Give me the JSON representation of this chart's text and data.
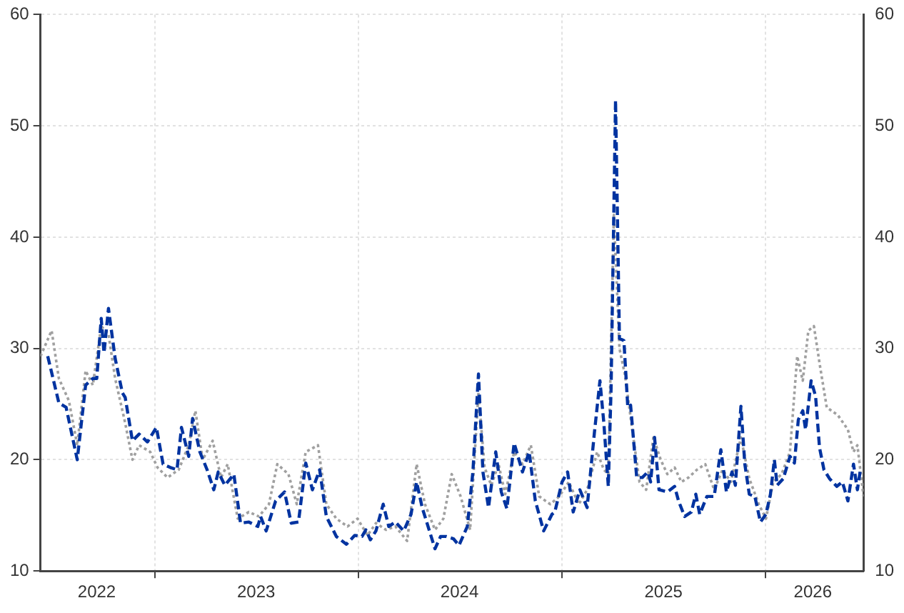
{
  "chart_data": {
    "type": "line",
    "grid": true,
    "legend": false,
    "marker": "none",
    "xlim": [
      "2022-06-10",
      "2026-06-26"
    ],
    "xticks": [
      {
        "value": "2023-01-01",
        "label": null
      },
      {
        "value": "2024-01-01",
        "label": null
      },
      {
        "value": "2025-01-01",
        "label": null
      },
      {
        "value": "2026-01-01",
        "label": null
      },
      {
        "value": "2022-09-19",
        "label": "2022"
      },
      {
        "value": "2023-07-02",
        "label": "2023"
      },
      {
        "value": "2024-07-01",
        "label": "2024"
      },
      {
        "value": "2025-07-02",
        "label": "2025"
      },
      {
        "value": "2026-03-27",
        "label": "2026"
      }
    ],
    "ylim": [
      10,
      60
    ],
    "yticks": [
      10,
      20,
      30,
      40,
      50,
      60
    ],
    "y2lim": [
      10,
      60
    ],
    "y2ticks": [
      10,
      20,
      30,
      40,
      50,
      60
    ],
    "series": [
      {
        "color": "#0033a0",
        "line_style": "dashed",
        "x": [
          "2022-06-23",
          "2022-07-13",
          "2022-07-26",
          "2022-08-15",
          "2022-08-30",
          "2022-09-12",
          "2022-09-19",
          "2022-09-27",
          "2022-10-02",
          "2022-10-10",
          "2022-10-22",
          "2022-11-04",
          "2022-11-09",
          "2022-11-22",
          "2022-12-04",
          "2022-12-19",
          "2023-01-04",
          "2023-01-16",
          "2023-01-29",
          "2023-02-10",
          "2023-02-18",
          "2023-03-03",
          "2023-03-10",
          "2023-03-23",
          "2023-04-05",
          "2023-04-17",
          "2023-04-25",
          "2023-05-07",
          "2023-05-23",
          "2023-06-04",
          "2023-06-19",
          "2023-07-05",
          "2023-07-10",
          "2023-07-20",
          "2023-08-06",
          "2023-08-22",
          "2023-09-03",
          "2023-09-16",
          "2023-09-29",
          "2023-10-11",
          "2023-10-24",
          "2023-11-05",
          "2023-11-23",
          "2023-12-11",
          "2023-12-26",
          "2024-01-08",
          "2024-01-15",
          "2024-01-23",
          "2024-02-02",
          "2024-02-15",
          "2024-02-25",
          "2024-03-08",
          "2024-03-23",
          "2024-04-05",
          "2024-04-15",
          "2024-04-25",
          "2024-05-08",
          "2024-05-18",
          "2024-05-28",
          "2024-06-07",
          "2024-06-20",
          "2024-06-30",
          "2024-07-15",
          "2024-07-25",
          "2024-08-04",
          "2024-08-12",
          "2024-08-22",
          "2024-09-04",
          "2024-09-14",
          "2024-09-24",
          "2024-10-07",
          "2024-10-22",
          "2024-11-03",
          "2024-11-14",
          "2024-11-29",
          "2024-12-14",
          "2024-12-19",
          "2025-01-01",
          "2025-01-11",
          "2025-01-21",
          "2025-02-02",
          "2025-02-15",
          "2025-02-28",
          "2025-03-10",
          "2025-03-17",
          "2025-03-25",
          "2025-03-30",
          "2025-04-07",
          "2025-04-14",
          "2025-04-22",
          "2025-04-29",
          "2025-05-04",
          "2025-05-15",
          "2025-05-25",
          "2025-06-04",
          "2025-06-09",
          "2025-06-16",
          "2025-06-24",
          "2025-07-09",
          "2025-07-22",
          "2025-07-29",
          "2025-08-09",
          "2025-08-21",
          "2025-08-29",
          "2025-09-05",
          "2025-09-18",
          "2025-10-01",
          "2025-10-13",
          "2025-10-23",
          "2025-11-02",
          "2025-11-08",
          "2025-11-18",
          "2025-11-25",
          "2025-12-03",
          "2025-12-13",
          "2025-12-23",
          "2026-01-02",
          "2026-01-10",
          "2026-01-17",
          "2026-01-22",
          "2026-02-02",
          "2026-02-14",
          "2026-02-22",
          "2026-03-01",
          "2026-03-09",
          "2026-03-14",
          "2026-03-24",
          "2026-04-01",
          "2026-04-08",
          "2026-04-16",
          "2026-04-26",
          "2026-05-09",
          "2026-05-19",
          "2026-05-29",
          "2026-06-08",
          "2026-06-15",
          "2026-06-21"
        ],
        "values": [
          29.3,
          25.1,
          24.7,
          20.0,
          26.7,
          27.3,
          27.3,
          32.7,
          29.6,
          33.6,
          29.1,
          26.0,
          25.6,
          21.7,
          22.3,
          21.6,
          22.9,
          19.6,
          19.3,
          19.1,
          22.9,
          20.3,
          23.7,
          20.7,
          19.1,
          17.3,
          18.9,
          17.7,
          18.7,
          14.3,
          14.4,
          14.0,
          14.9,
          13.6,
          16.3,
          17.1,
          14.3,
          14.4,
          19.7,
          17.3,
          19.1,
          14.9,
          13.1,
          12.4,
          13.2,
          13.1,
          13.7,
          12.8,
          13.6,
          16.0,
          14.0,
          14.4,
          13.6,
          15.1,
          18.0,
          15.7,
          13.6,
          12.0,
          13.1,
          13.1,
          12.9,
          12.3,
          14.0,
          18.9,
          27.7,
          18.9,
          15.7,
          20.7,
          17.1,
          15.6,
          21.5,
          18.9,
          20.7,
          16.3,
          13.6,
          15.1,
          15.3,
          18.0,
          18.9,
          15.3,
          17.3,
          15.7,
          22.4,
          27.1,
          23.3,
          17.6,
          26.4,
          52.3,
          30.9,
          30.7,
          24.7,
          24.9,
          18.4,
          18.4,
          18.9,
          18.0,
          22.0,
          17.3,
          17.1,
          17.6,
          16.3,
          14.9,
          15.3,
          16.9,
          15.1,
          16.7,
          16.7,
          20.9,
          17.1,
          18.9,
          17.7,
          24.8,
          19.6,
          16.9,
          16.7,
          14.4,
          15.1,
          16.9,
          20.0,
          17.7,
          18.3,
          20.3,
          19.7,
          23.6,
          24.4,
          22.7,
          27.1,
          25.7,
          21.1,
          19.1,
          18.3,
          17.6,
          18.0,
          16.3,
          19.6,
          17.3,
          19.3
        ]
      },
      {
        "color": "#a0a0a0",
        "line_style": "dotted",
        "x": [
          "2022-06-10",
          "2022-06-30",
          "2022-07-13",
          "2022-07-31",
          "2022-08-15",
          "2022-08-30",
          "2022-09-12",
          "2022-09-27",
          "2022-10-10",
          "2022-10-22",
          "2022-11-09",
          "2022-11-22",
          "2022-12-04",
          "2022-12-24",
          "2023-01-06",
          "2023-01-24",
          "2023-02-13",
          "2023-03-03",
          "2023-03-15",
          "2023-03-28",
          "2023-04-15",
          "2023-04-30",
          "2023-05-12",
          "2023-05-30",
          "2023-06-19",
          "2023-07-07",
          "2023-07-25",
          "2023-08-09",
          "2023-08-29",
          "2023-09-13",
          "2023-09-29",
          "2023-10-21",
          "2023-11-05",
          "2023-11-23",
          "2023-12-13",
          "2023-12-31",
          "2024-01-18",
          "2024-02-02",
          "2024-02-20",
          "2024-03-08",
          "2024-03-29",
          "2024-04-15",
          "2024-04-30",
          "2024-05-18",
          "2024-06-02",
          "2024-06-17",
          "2024-07-03",
          "2024-07-20",
          "2024-08-04",
          "2024-08-15",
          "2024-08-27",
          "2024-09-09",
          "2024-09-21",
          "2024-10-07",
          "2024-10-22",
          "2024-11-06",
          "2024-11-21",
          "2024-12-11",
          "2024-12-27",
          "2025-01-13",
          "2025-01-31",
          "2025-02-15",
          "2025-03-05",
          "2025-03-17",
          "2025-03-25",
          "2025-04-04",
          "2025-04-14",
          "2025-04-24",
          "2025-05-07",
          "2025-05-20",
          "2025-06-01",
          "2025-06-14",
          "2025-06-27",
          "2025-07-09",
          "2025-07-22",
          "2025-08-03",
          "2025-08-16",
          "2025-08-31",
          "2025-09-15",
          "2025-10-01",
          "2025-10-16",
          "2025-10-31",
          "2025-11-18",
          "2025-12-03",
          "2025-12-20",
          "2026-01-02",
          "2026-01-15",
          "2026-01-30",
          "2026-02-14",
          "2026-02-27",
          "2026-03-09",
          "2026-03-19",
          "2026-03-29",
          "2026-04-08",
          "2026-04-21",
          "2026-05-11",
          "2026-05-29",
          "2026-06-08",
          "2026-06-15",
          "2026-06-26"
        ],
        "values": [
          29.3,
          31.6,
          27.3,
          25.3,
          21.3,
          28.0,
          26.7,
          32.0,
          31.3,
          27.3,
          23.3,
          20.0,
          21.3,
          20.7,
          19.3,
          18.4,
          19.1,
          21.3,
          24.4,
          20.0,
          21.7,
          18.4,
          19.6,
          14.7,
          15.3,
          14.9,
          16.0,
          19.6,
          18.7,
          16.0,
          20.7,
          21.3,
          16.0,
          14.7,
          14.0,
          14.7,
          13.2,
          14.3,
          13.7,
          14.0,
          12.7,
          19.6,
          16.0,
          13.7,
          14.7,
          18.7,
          16.7,
          13.7,
          26.0,
          19.3,
          17.7,
          19.6,
          16.9,
          20.7,
          19.6,
          21.3,
          16.7,
          16.0,
          16.7,
          18.0,
          16.0,
          17.3,
          20.7,
          19.1,
          18.7,
          42.0,
          30.0,
          27.6,
          22.7,
          18.0,
          17.3,
          22.0,
          20.0,
          18.7,
          19.3,
          18.0,
          18.4,
          19.1,
          19.6,
          17.3,
          19.1,
          18.0,
          22.0,
          18.3,
          16.0,
          14.7,
          18.0,
          18.7,
          20.7,
          29.3,
          27.1,
          31.6,
          32.0,
          28.7,
          24.7,
          24.0,
          22.7,
          20.7,
          21.3,
          16.7
        ]
      }
    ]
  }
}
